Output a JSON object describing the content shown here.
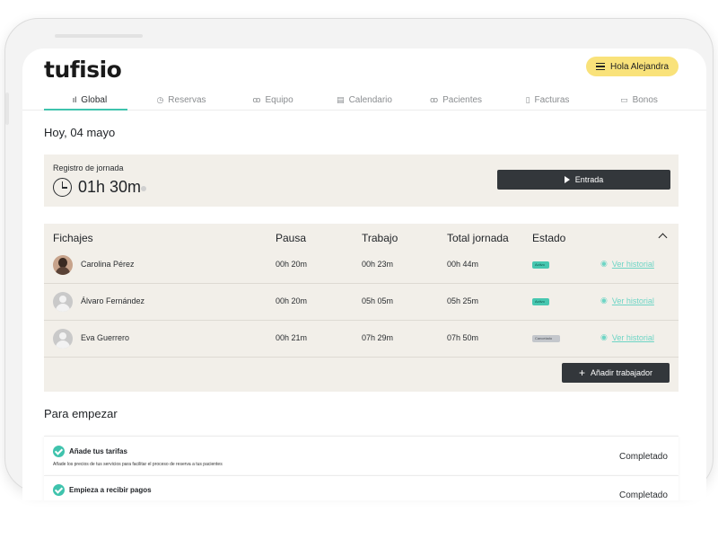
{
  "header": {
    "logo": "tufisio",
    "greeting": "Hola Alejandra"
  },
  "tabs": [
    {
      "label": "Global",
      "icon": "bar-chart-icon",
      "glyph": "ıl",
      "active": true
    },
    {
      "label": "Reservas",
      "icon": "clock-icon",
      "glyph": "◷",
      "active": false
    },
    {
      "label": "Equipo",
      "icon": "people-icon",
      "glyph": "ꝏ",
      "active": false
    },
    {
      "label": "Calendario",
      "icon": "calendar-icon",
      "glyph": "▤",
      "active": false
    },
    {
      "label": "Pacientes",
      "icon": "add-person-icon",
      "glyph": "ꝏ",
      "active": false
    },
    {
      "label": "Facturas",
      "icon": "document-icon",
      "glyph": "▯",
      "active": false
    },
    {
      "label": "Bonos",
      "icon": "ticket-icon",
      "glyph": "▭",
      "active": false
    }
  ],
  "date": "Hoy, 04 mayo",
  "registro": {
    "label": "Registro de jornada",
    "time": "01h 30m",
    "button": "Entrada"
  },
  "fichajes": {
    "headers": [
      "Fichajes",
      "Pausa",
      "Trabajo",
      "Total jornada",
      "Estado"
    ],
    "rows": [
      {
        "name": "Carolina Pérez",
        "pausa": "00h 20m",
        "trabajo": "00h 23m",
        "total": "00h 44m",
        "estado": "Activo",
        "estado_type": "activo",
        "link": "Ver historial",
        "avatar": "photo"
      },
      {
        "name": "Álvaro Fernández",
        "pausa": "00h 20m",
        "trabajo": "05h 05m",
        "total": "05h 25m",
        "estado": "Activo",
        "estado_type": "activo",
        "link": "Ver historial",
        "avatar": "placeholder"
      },
      {
        "name": "Eva Guerrero",
        "pausa": "00h 21m",
        "trabajo": "07h 29m",
        "total": "07h 50m",
        "estado": "Cancelado",
        "estado_type": "cancel",
        "link": "Ver historial",
        "avatar": "placeholder"
      }
    ],
    "add_button": "Añadir trabajador"
  },
  "para_empezar": {
    "title": "Para empezar",
    "items": [
      {
        "title": "Añade tus tarifas",
        "desc": "Añade los precios de tus servicios para facilitar el proceso de reserva a tus pacientes",
        "status": "Completado"
      },
      {
        "title": "Empieza a recibir pagos",
        "desc": "",
        "status": "Completado"
      }
    ]
  },
  "colors": {
    "accent": "#3fc3ad",
    "greeting_bg": "#f9e27a",
    "panel_bg": "#f2efe9",
    "dark_button": "#33373b"
  }
}
